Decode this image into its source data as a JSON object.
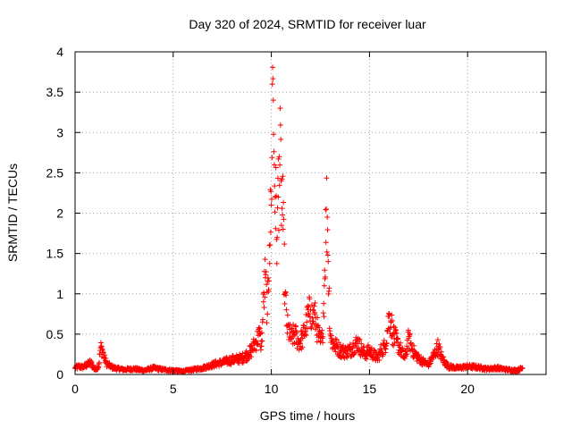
{
  "chart_data": {
    "type": "scatter",
    "title": "Day 320 of 2024, SRMTID for receiver luar",
    "xlabel": "GPS time / hours",
    "ylabel": "SRMTID / TECUs",
    "xlim": [
      0,
      24
    ],
    "ylim": [
      0,
      4
    ],
    "xticks": [
      0,
      5,
      10,
      15,
      20
    ],
    "yticks": [
      0,
      0.5,
      1,
      1.5,
      2,
      2.5,
      3,
      3.5,
      4
    ],
    "xtick_labels": [
      "0",
      "5",
      "10",
      "15",
      "20"
    ],
    "ytick_labels": [
      "0",
      "0.5",
      "1",
      "1.5",
      "2",
      "2.5",
      "3",
      "3.5",
      "4"
    ],
    "grid": true,
    "marker": "+",
    "series": [
      {
        "name": "SRMTID",
        "color": "#ff0000",
        "x": [
          0.0,
          0.2,
          0.4,
          0.6,
          0.8,
          1.0,
          1.2,
          1.3,
          1.4,
          1.5,
          1.6,
          1.8,
          2.0,
          2.5,
          3.0,
          3.5,
          4.0,
          4.5,
          5.0,
          5.5,
          6.0,
          6.5,
          7.0,
          7.5,
          8.0,
          8.5,
          8.8,
          9.0,
          9.2,
          9.4,
          9.5,
          9.6,
          9.7,
          9.8,
          9.9,
          10.0,
          10.05,
          10.1,
          10.15,
          10.2,
          10.3,
          10.4,
          10.5,
          10.6,
          10.7,
          10.8,
          11.0,
          11.2,
          11.4,
          11.6,
          11.8,
          12.0,
          12.1,
          12.2,
          12.3,
          12.4,
          12.5,
          12.6,
          12.7,
          12.8,
          12.85,
          12.9,
          13.0,
          13.1,
          13.3,
          13.5,
          13.8,
          14.0,
          14.2,
          14.4,
          14.6,
          14.8,
          15.0,
          15.2,
          15.4,
          15.6,
          15.8,
          16.0,
          16.1,
          16.2,
          16.4,
          16.6,
          16.8,
          17.0,
          17.2,
          17.5,
          17.8,
          18.0,
          18.3,
          18.5,
          18.7,
          19.0,
          19.5,
          20.0,
          20.5,
          21.0,
          21.5,
          22.0,
          22.5,
          22.8
        ],
        "y": [
          0.08,
          0.1,
          0.09,
          0.12,
          0.15,
          0.06,
          0.1,
          0.33,
          0.3,
          0.2,
          0.14,
          0.1,
          0.08,
          0.06,
          0.07,
          0.05,
          0.08,
          0.06,
          0.05,
          0.04,
          0.06,
          0.08,
          0.12,
          0.15,
          0.18,
          0.2,
          0.25,
          0.3,
          0.4,
          0.5,
          0.35,
          0.9,
          1.2,
          0.75,
          1.6,
          2.1,
          3.6,
          3.4,
          2.6,
          2.2,
          1.7,
          2.7,
          2.4,
          1.8,
          1.0,
          0.6,
          0.45,
          0.5,
          0.4,
          0.45,
          0.65,
          0.8,
          0.7,
          0.75,
          0.6,
          0.5,
          0.4,
          0.45,
          1.1,
          2.05,
          1.95,
          1.4,
          0.5,
          0.4,
          0.35,
          0.3,
          0.28,
          0.3,
          0.35,
          0.4,
          0.3,
          0.25,
          0.3,
          0.25,
          0.2,
          0.3,
          0.35,
          0.72,
          0.65,
          0.5,
          0.4,
          0.3,
          0.2,
          0.45,
          0.3,
          0.2,
          0.15,
          0.12,
          0.25,
          0.35,
          0.2,
          0.1,
          0.08,
          0.1,
          0.09,
          0.07,
          0.08,
          0.06,
          0.05,
          0.08
        ]
      }
    ]
  }
}
